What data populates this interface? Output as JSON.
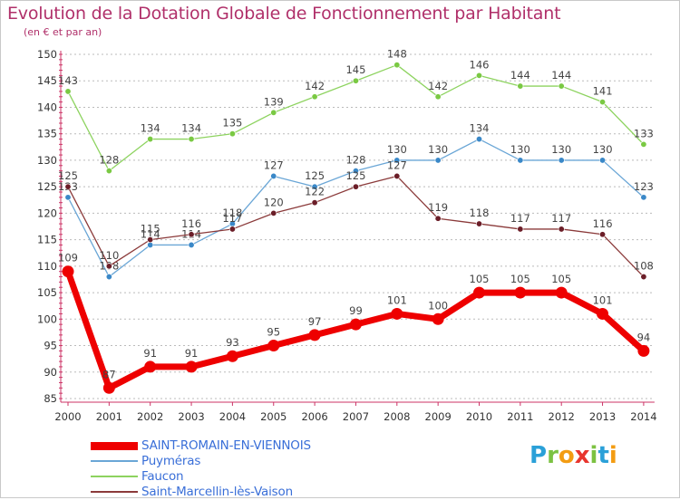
{
  "header": {
    "title": "Evolution de la Dotation Globale de Fonctionnement par Habitant",
    "subtitle": "(en € et par an)"
  },
  "logo": {
    "text": "Proxiti",
    "letters": [
      {
        "ch": "P",
        "color": "#2aa0d8"
      },
      {
        "ch": "r",
        "color": "#7cc242"
      },
      {
        "ch": "o",
        "color": "#f39c12"
      },
      {
        "ch": "x",
        "color": "#e8352e"
      },
      {
        "ch": "i",
        "color": "#7cc242"
      },
      {
        "ch": "t",
        "color": "#2aa0d8"
      },
      {
        "ch": "i",
        "color": "#f39c12"
      }
    ]
  },
  "colors": {
    "axis": "#cc3366",
    "grid": "#bbbbbb",
    "tick_text": "#333333",
    "value_text": "#444444"
  },
  "chart_data": {
    "type": "line",
    "title": "Evolution de la Dotation Globale de Fonctionnement par Habitant",
    "subtitle": "(en € et par an)",
    "xlabel": "",
    "ylabel": "",
    "x": [
      "2000",
      "2001",
      "2002",
      "2003",
      "2004",
      "2005",
      "2006",
      "2007",
      "2008",
      "2009",
      "2010",
      "2011",
      "2012",
      "2013",
      "2014"
    ],
    "ylim": [
      85,
      150
    ],
    "yticks": [
      85,
      90,
      95,
      100,
      105,
      110,
      115,
      120,
      125,
      130,
      135,
      140,
      145,
      150
    ],
    "grid": "horizontal dashed",
    "legend_position": "bottom-left",
    "series": [
      {
        "name": "Faucon",
        "color": "#8dd35f",
        "point_color": "#7ac943",
        "emphasis": false,
        "values": [
          143,
          128,
          134,
          134,
          135,
          139,
          142,
          145,
          148,
          142,
          146,
          144,
          144,
          141,
          133
        ]
      },
      {
        "name": "Puyméras",
        "color": "#6aa6d6",
        "point_color": "#3a88c8",
        "emphasis": false,
        "values": [
          123,
          108,
          114,
          114,
          118,
          127,
          125,
          128,
          130,
          130,
          134,
          130,
          130,
          130,
          123
        ]
      },
      {
        "name": "Saint-Marcellin-lès-Vaison",
        "color": "#8b3a3a",
        "point_color": "#6b1e28",
        "emphasis": false,
        "values": [
          125,
          110,
          115,
          116,
          117,
          120,
          122,
          125,
          127,
          119,
          118,
          117,
          117,
          116,
          108
        ]
      },
      {
        "name": "SAINT-ROMAIN-EN-VIENNOIS",
        "color": "#ee0000",
        "point_color": "#ee0000",
        "emphasis": true,
        "values": [
          109,
          87,
          91,
          91,
          93,
          95,
          97,
          99,
          101,
          100,
          105,
          105,
          105,
          101,
          94
        ]
      }
    ],
    "legend_order": [
      "SAINT-ROMAIN-EN-VIENNOIS",
      "Puyméras",
      "Faucon",
      "Saint-Marcellin-lès-Vaison"
    ]
  }
}
